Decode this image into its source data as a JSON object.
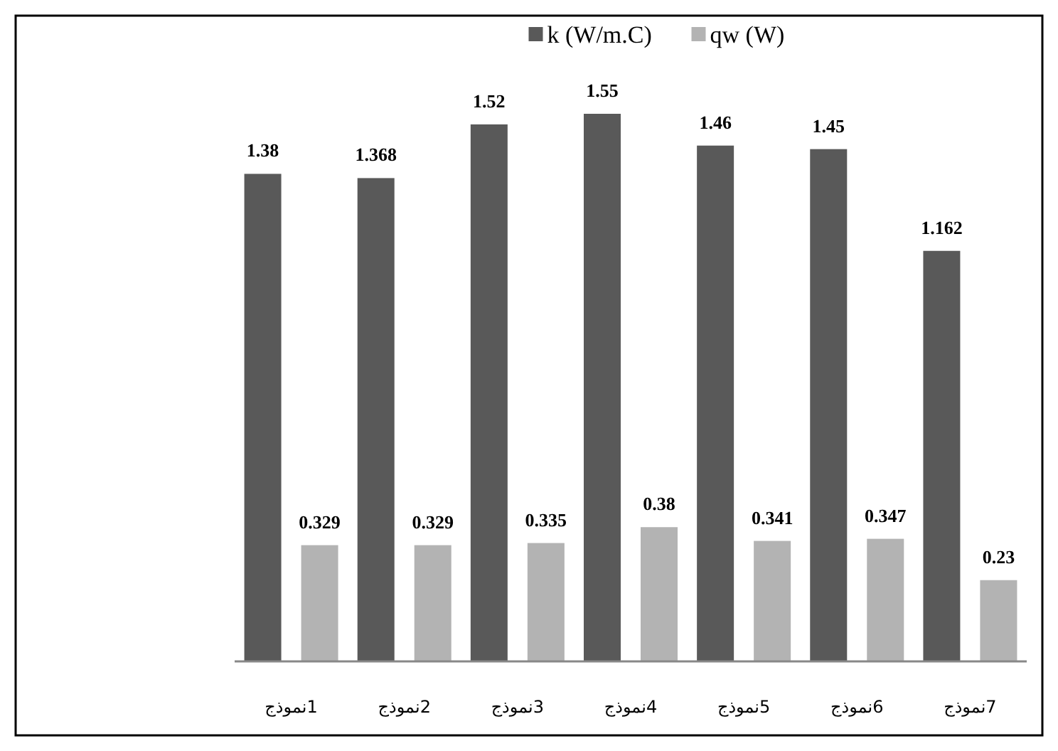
{
  "chart_data": {
    "type": "bar",
    "categories": [
      "1نموذج",
      "2نموذج",
      "3نموذج",
      "4نموذج",
      "5نموذج",
      "6نموذج",
      "7نموذج"
    ],
    "series": [
      {
        "name": "k (W/m.C)",
        "color": "#595959",
        "values": [
          1.38,
          1.368,
          1.52,
          1.55,
          1.46,
          1.45,
          1.162
        ]
      },
      {
        "name": "qw (W)",
        "color": "#b3b3b3",
        "values": [
          0.329,
          0.329,
          0.335,
          0.38,
          0.341,
          0.347,
          0.23
        ]
      }
    ],
    "data_labels": true,
    "legend": "top"
  }
}
